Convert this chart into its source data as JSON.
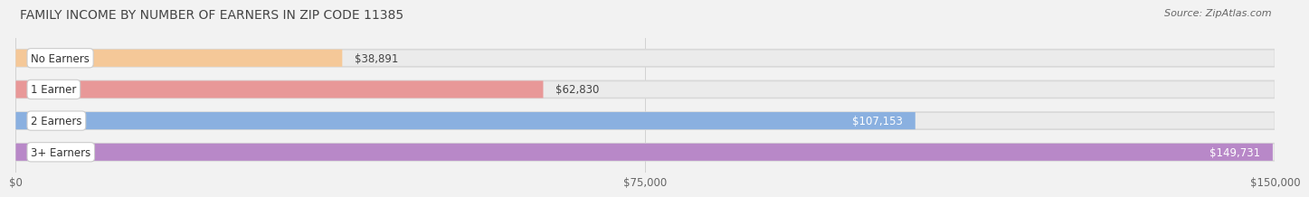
{
  "title": "FAMILY INCOME BY NUMBER OF EARNERS IN ZIP CODE 11385",
  "source": "Source: ZipAtlas.com",
  "categories": [
    "No Earners",
    "1 Earner",
    "2 Earners",
    "3+ Earners"
  ],
  "values": [
    38891,
    62830,
    107153,
    149731
  ],
  "bar_colors": [
    "#f5c898",
    "#e89898",
    "#8ab0e0",
    "#b888c8"
  ],
  "bar_bg_color": "#ebebeb",
  "max_value": 150000,
  "x_ticks": [
    0,
    75000,
    150000
  ],
  "x_tick_labels": [
    "$0",
    "$75,000",
    "$150,000"
  ],
  "value_labels": [
    "$38,891",
    "$62,830",
    "$107,153",
    "$149,731"
  ],
  "title_fontsize": 10,
  "source_fontsize": 8,
  "bar_label_fontsize": 8.5,
  "tick_fontsize": 8.5,
  "category_fontsize": 8.5,
  "background_color": "#f2f2f2"
}
